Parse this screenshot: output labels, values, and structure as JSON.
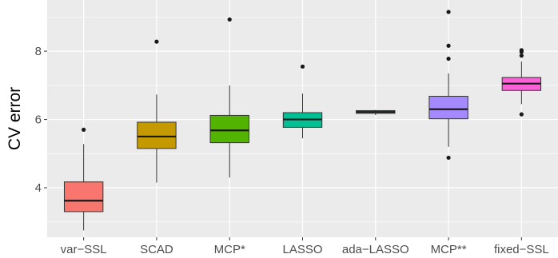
{
  "chart_data": {
    "type": "box",
    "title": "",
    "xlabel": "",
    "ylabel": "CV error",
    "ylim": [
      2.55,
      9.5
    ],
    "yticks": [
      4,
      6,
      8
    ],
    "grid": true,
    "legend": "none",
    "background": "#ebebeb",
    "categories": [
      "var−SSL",
      "SCAD",
      "MCP*",
      "LASSO",
      "ada−LASSO",
      "MCP**",
      "fixed−SSL"
    ],
    "boxes": [
      {
        "name": "var−SSL",
        "color": "#f8766d",
        "whisker_low": 2.75,
        "q1": 3.3,
        "median": 3.62,
        "q3": 4.17,
        "whisker_high": 5.28,
        "outliers": [
          5.7
        ]
      },
      {
        "name": "SCAD",
        "color": "#c49a00",
        "whisker_low": 4.15,
        "q1": 5.15,
        "median": 5.5,
        "q3": 5.92,
        "whisker_high": 6.73,
        "outliers": [
          8.28
        ]
      },
      {
        "name": "MCP*",
        "color": "#53b400",
        "whisker_low": 4.3,
        "q1": 5.32,
        "median": 5.68,
        "q3": 6.12,
        "whisker_high": 7.0,
        "outliers": [
          8.93
        ]
      },
      {
        "name": "LASSO",
        "color": "#00c094",
        "whisker_low": 5.45,
        "q1": 5.77,
        "median": 6.0,
        "q3": 6.2,
        "whisker_high": 6.76,
        "outliers": [
          7.55
        ]
      },
      {
        "name": "ada−LASSO",
        "color": "#00b6eb",
        "whisker_low": 6.13,
        "q1": 6.18,
        "median": 6.22,
        "q3": 6.26,
        "whisker_high": 6.28,
        "outliers": []
      },
      {
        "name": "MCP**",
        "color": "#a58aff",
        "whisker_low": 5.2,
        "q1": 6.02,
        "median": 6.3,
        "q3": 6.68,
        "whisker_high": 7.35,
        "outliers": [
          4.88,
          7.78,
          8.16,
          9.15
        ]
      },
      {
        "name": "fixed−SSL",
        "color": "#fb61d7",
        "whisker_low": 6.45,
        "q1": 6.85,
        "median": 7.05,
        "q3": 7.23,
        "whisker_high": 7.7,
        "outliers": [
          6.15,
          7.87,
          7.98,
          8.03
        ]
      }
    ]
  }
}
